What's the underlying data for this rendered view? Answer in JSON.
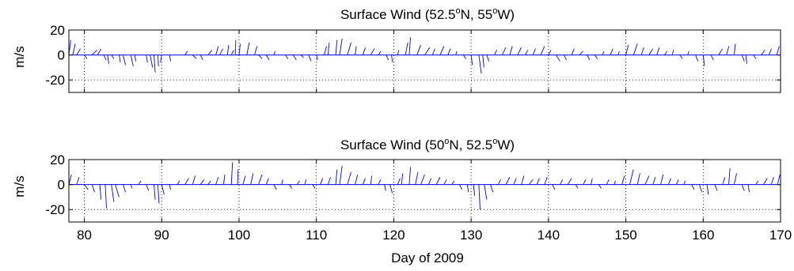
{
  "chart_data": [
    {
      "type": "vector-stickplot",
      "title": "Surface Wind (52.5°N, 55°W)",
      "title_prefix": "Surface Wind (52.5",
      "title_mid": "N, 55",
      "title_suffix": "W)",
      "title_sup1": "o",
      "title_sup2": "o",
      "ylabel": "m/s",
      "xlim": [
        78,
        170
      ],
      "ylim": [
        -30,
        20
      ],
      "yticks": [
        20,
        0,
        -20
      ],
      "ytick_labels": [
        "20",
        "0",
        "-20"
      ],
      "xticks": [
        80,
        90,
        100,
        110,
        120,
        130,
        140,
        150,
        160,
        170
      ],
      "xtick_labels": [],
      "grid": true,
      "color": "#0000ff",
      "sticks": [
        {
          "day": 78.0,
          "u": 1.5,
          "v": 12.0
        },
        {
          "day": 78.5,
          "u": 2.0,
          "v": 9.0
        },
        {
          "day": 79.0,
          "u": 3.0,
          "v": 5.0
        },
        {
          "day": 80.0,
          "u": 2.0,
          "v": -3.0
        },
        {
          "day": 81.0,
          "u": 4.0,
          "v": 4.0
        },
        {
          "day": 81.7,
          "u": 3.0,
          "v": 5.0
        },
        {
          "day": 82.5,
          "u": 2.0,
          "v": -4.0
        },
        {
          "day": 83.0,
          "u": 1.0,
          "v": -7.0
        },
        {
          "day": 83.5,
          "u": 2.0,
          "v": -3.0
        },
        {
          "day": 84.5,
          "u": 1.0,
          "v": -6.0
        },
        {
          "day": 85.0,
          "u": 2.0,
          "v": -8.0
        },
        {
          "day": 86.0,
          "u": 2.0,
          "v": -9.0
        },
        {
          "day": 86.5,
          "u": 1.0,
          "v": -5.0
        },
        {
          "day": 88.0,
          "u": 1.0,
          "v": -6.0
        },
        {
          "day": 88.5,
          "u": 2.0,
          "v": -10.0
        },
        {
          "day": 89.0,
          "u": 1.0,
          "v": -14.0
        },
        {
          "day": 89.5,
          "u": 0.5,
          "v": -9.0
        },
        {
          "day": 90.0,
          "u": -1.0,
          "v": -6.0
        },
        {
          "day": 91.0,
          "u": 1.0,
          "v": -5.0
        },
        {
          "day": 93.0,
          "u": 2.0,
          "v": 3.0
        },
        {
          "day": 94.0,
          "u": 3.0,
          "v": -3.0
        },
        {
          "day": 95.0,
          "u": 2.0,
          "v": -4.0
        },
        {
          "day": 96.0,
          "u": 3.0,
          "v": 4.0
        },
        {
          "day": 97.0,
          "u": 2.0,
          "v": 7.0
        },
        {
          "day": 97.5,
          "u": 2.5,
          "v": 5.0
        },
        {
          "day": 98.5,
          "u": 1.0,
          "v": 8.0
        },
        {
          "day": 99.0,
          "u": 2.0,
          "v": 4.0
        },
        {
          "day": 99.5,
          "u": 0.5,
          "v": 12.0
        },
        {
          "day": 100.0,
          "u": 1.0,
          "v": 9.0
        },
        {
          "day": 101.0,
          "u": 2.0,
          "v": 10.0
        },
        {
          "day": 102.0,
          "u": 2.0,
          "v": 7.0
        },
        {
          "day": 102.5,
          "u": 3.0,
          "v": -3.0
        },
        {
          "day": 103.5,
          "u": 2.5,
          "v": -4.0
        },
        {
          "day": 104.5,
          "u": 1.0,
          "v": 3.0
        },
        {
          "day": 106.0,
          "u": 2.0,
          "v": -3.0
        },
        {
          "day": 107.0,
          "u": 2.5,
          "v": -4.0
        },
        {
          "day": 108.0,
          "u": 2.0,
          "v": -2.0
        },
        {
          "day": 109.0,
          "u": 2.0,
          "v": -5.0
        },
        {
          "day": 110.0,
          "u": 1.0,
          "v": -4.0
        },
        {
          "day": 111.0,
          "u": 2.0,
          "v": 7.0
        },
        {
          "day": 111.5,
          "u": 1.0,
          "v": 10.0
        },
        {
          "day": 112.5,
          "u": 1.0,
          "v": 12.0
        },
        {
          "day": 113.0,
          "u": 2.0,
          "v": 13.0
        },
        {
          "day": 114.0,
          "u": 3.0,
          "v": 10.0
        },
        {
          "day": 115.0,
          "u": 1.0,
          "v": 7.0
        },
        {
          "day": 116.0,
          "u": 2.0,
          "v": 6.0
        },
        {
          "day": 117.0,
          "u": 3.0,
          "v": 5.0
        },
        {
          "day": 118.0,
          "u": 2.0,
          "v": 3.0
        },
        {
          "day": 119.0,
          "u": 2.0,
          "v": -4.0
        },
        {
          "day": 119.7,
          "u": 1.0,
          "v": -6.0
        },
        {
          "day": 120.5,
          "u": 1.0,
          "v": 4.0
        },
        {
          "day": 121.5,
          "u": 2.0,
          "v": 10.0
        },
        {
          "day": 122.0,
          "u": 1.0,
          "v": 14.0
        },
        {
          "day": 123.0,
          "u": 3.0,
          "v": 8.0
        },
        {
          "day": 124.0,
          "u": 4.0,
          "v": 6.0
        },
        {
          "day": 125.0,
          "u": 2.0,
          "v": 5.0
        },
        {
          "day": 126.0,
          "u": 3.0,
          "v": 7.0
        },
        {
          "day": 127.0,
          "u": 2.0,
          "v": 5.0
        },
        {
          "day": 128.0,
          "u": 1.0,
          "v": 3.0
        },
        {
          "day": 129.0,
          "u": 2.0,
          "v": -3.0
        },
        {
          "day": 130.0,
          "u": 1.0,
          "v": -8.0
        },
        {
          "day": 131.0,
          "u": 2.0,
          "v": -15.0
        },
        {
          "day": 131.5,
          "u": 1.0,
          "v": -10.0
        },
        {
          "day": 132.0,
          "u": 2.0,
          "v": -5.0
        },
        {
          "day": 133.0,
          "u": 2.0,
          "v": 4.0
        },
        {
          "day": 134.0,
          "u": 3.0,
          "v": 6.0
        },
        {
          "day": 135.0,
          "u": 2.0,
          "v": 7.0
        },
        {
          "day": 136.0,
          "u": 3.0,
          "v": 6.0
        },
        {
          "day": 137.0,
          "u": 2.0,
          "v": 4.0
        },
        {
          "day": 138.0,
          "u": 2.0,
          "v": 5.0
        },
        {
          "day": 139.0,
          "u": 3.0,
          "v": 7.0
        },
        {
          "day": 140.0,
          "u": 2.0,
          "v": 4.0
        },
        {
          "day": 141.0,
          "u": 3.0,
          "v": -5.0
        },
        {
          "day": 142.0,
          "u": 2.0,
          "v": -4.0
        },
        {
          "day": 143.0,
          "u": 2.0,
          "v": 5.0
        },
        {
          "day": 144.0,
          "u": 3.0,
          "v": 3.0
        },
        {
          "day": 145.0,
          "u": 2.0,
          "v": -4.0
        },
        {
          "day": 146.0,
          "u": 2.0,
          "v": -3.0
        },
        {
          "day": 147.0,
          "u": 1.0,
          "v": 3.0
        },
        {
          "day": 148.0,
          "u": 2.0,
          "v": 5.0
        },
        {
          "day": 149.0,
          "u": 1.0,
          "v": 3.0
        },
        {
          "day": 150.0,
          "u": 2.0,
          "v": 8.0
        },
        {
          "day": 151.0,
          "u": 3.0,
          "v": 9.0
        },
        {
          "day": 152.0,
          "u": 2.0,
          "v": 6.0
        },
        {
          "day": 153.0,
          "u": 3.0,
          "v": 5.0
        },
        {
          "day": 154.0,
          "u": 2.0,
          "v": 6.0
        },
        {
          "day": 155.0,
          "u": 2.0,
          "v": 3.0
        },
        {
          "day": 156.0,
          "u": 1.0,
          "v": 4.0
        },
        {
          "day": 157.0,
          "u": 2.0,
          "v": -3.0
        },
        {
          "day": 158.0,
          "u": 1.0,
          "v": 3.0
        },
        {
          "day": 159.0,
          "u": 2.0,
          "v": -5.0
        },
        {
          "day": 160.0,
          "u": 1.0,
          "v": -9.0
        },
        {
          "day": 161.0,
          "u": 2.0,
          "v": -4.0
        },
        {
          "day": 162.0,
          "u": 3.0,
          "v": 5.0
        },
        {
          "day": 163.0,
          "u": 2.0,
          "v": 7.0
        },
        {
          "day": 164.0,
          "u": 1.0,
          "v": 9.0
        },
        {
          "day": 165.0,
          "u": 2.0,
          "v": -5.0
        },
        {
          "day": 165.5,
          "u": 1.0,
          "v": -7.0
        },
        {
          "day": 166.5,
          "u": 2.0,
          "v": -3.0
        },
        {
          "day": 167.5,
          "u": 3.0,
          "v": 4.0
        },
        {
          "day": 168.5,
          "u": 2.0,
          "v": 5.0
        },
        {
          "day": 169.5,
          "u": 2.0,
          "v": 7.0
        }
      ]
    },
    {
      "type": "vector-stickplot",
      "title": "Surface Wind (50°N, 52.5°W)",
      "title_prefix": "Surface Wind (50",
      "title_mid": "N, 52.5",
      "title_suffix": "W)",
      "title_sup1": "o",
      "title_sup2": "o",
      "ylabel": "m/s",
      "xlabel": "Day of 2009",
      "xlim": [
        78,
        170
      ],
      "ylim": [
        -30,
        20
      ],
      "yticks": [
        20,
        0,
        -20
      ],
      "ytick_labels": [
        "20",
        "0",
        "-20"
      ],
      "xticks": [
        80,
        90,
        100,
        110,
        120,
        130,
        140,
        150,
        160,
        170
      ],
      "xtick_labels": [
        "80",
        "90",
        "100",
        "110",
        "120",
        "130",
        "140",
        "150",
        "160",
        "170"
      ],
      "grid": true,
      "color": "#0000ff",
      "sticks": [
        {
          "day": 78.0,
          "u": 2.0,
          "v": 8.0
        },
        {
          "day": 79.0,
          "u": 2.0,
          "v": 6.0
        },
        {
          "day": 80.0,
          "u": 3.0,
          "v": -4.0
        },
        {
          "day": 81.0,
          "u": 2.0,
          "v": -6.0
        },
        {
          "day": 82.0,
          "u": 1.0,
          "v": -12.0
        },
        {
          "day": 82.7,
          "u": 1.0,
          "v": -19.0
        },
        {
          "day": 83.5,
          "u": 2.0,
          "v": -14.0
        },
        {
          "day": 84.0,
          "u": 3.0,
          "v": -10.0
        },
        {
          "day": 85.0,
          "u": 2.0,
          "v": -6.0
        },
        {
          "day": 86.0,
          "u": 1.0,
          "v": -3.0
        },
        {
          "day": 87.0,
          "u": 2.0,
          "v": 3.0
        },
        {
          "day": 88.0,
          "u": 2.0,
          "v": -5.0
        },
        {
          "day": 89.0,
          "u": 1.0,
          "v": -12.0
        },
        {
          "day": 89.5,
          "u": 1.0,
          "v": -15.0
        },
        {
          "day": 90.0,
          "u": 2.0,
          "v": -8.0
        },
        {
          "day": 91.0,
          "u": 1.0,
          "v": -4.0
        },
        {
          "day": 92.0,
          "u": 2.0,
          "v": 3.0
        },
        {
          "day": 93.0,
          "u": 3.0,
          "v": 5.0
        },
        {
          "day": 94.0,
          "u": 2.0,
          "v": 7.0
        },
        {
          "day": 95.0,
          "u": 3.0,
          "v": 4.0
        },
        {
          "day": 96.0,
          "u": 2.0,
          "v": 3.0
        },
        {
          "day": 97.0,
          "u": 2.0,
          "v": 6.0
        },
        {
          "day": 98.0,
          "u": 1.0,
          "v": 8.0
        },
        {
          "day": 99.0,
          "u": 1.0,
          "v": 18.0
        },
        {
          "day": 99.8,
          "u": 0.5,
          "v": 12.0
        },
        {
          "day": 100.5,
          "u": 2.0,
          "v": 7.0
        },
        {
          "day": 101.5,
          "u": 2.0,
          "v": 9.0
        },
        {
          "day": 102.5,
          "u": 3.0,
          "v": 8.0
        },
        {
          "day": 103.5,
          "u": 2.0,
          "v": 5.0
        },
        {
          "day": 104.5,
          "u": 2.0,
          "v": -4.0
        },
        {
          "day": 105.5,
          "u": 1.0,
          "v": 4.0
        },
        {
          "day": 106.5,
          "u": 2.0,
          "v": -3.0
        },
        {
          "day": 107.5,
          "u": 2.0,
          "v": 3.0
        },
        {
          "day": 108.5,
          "u": 1.0,
          "v": 4.0
        },
        {
          "day": 109.5,
          "u": 2.0,
          "v": -3.0
        },
        {
          "day": 110.5,
          "u": 2.0,
          "v": 5.0
        },
        {
          "day": 111.5,
          "u": 2.0,
          "v": 6.0
        },
        {
          "day": 112.5,
          "u": 1.0,
          "v": 12.0
        },
        {
          "day": 113.0,
          "u": 2.0,
          "v": 15.0
        },
        {
          "day": 114.0,
          "u": 3.0,
          "v": 10.0
        },
        {
          "day": 115.0,
          "u": 2.0,
          "v": 8.0
        },
        {
          "day": 116.0,
          "u": 2.0,
          "v": 5.0
        },
        {
          "day": 117.0,
          "u": 1.0,
          "v": 7.0
        },
        {
          "day": 118.0,
          "u": 2.0,
          "v": 4.0
        },
        {
          "day": 118.8,
          "u": 1.0,
          "v": -5.0
        },
        {
          "day": 119.5,
          "u": 2.0,
          "v": -7.0
        },
        {
          "day": 120.5,
          "u": 2.0,
          "v": 5.0
        },
        {
          "day": 121.0,
          "u": 1.0,
          "v": 9.0
        },
        {
          "day": 122.0,
          "u": 1.0,
          "v": 14.0
        },
        {
          "day": 122.8,
          "u": 2.0,
          "v": 10.0
        },
        {
          "day": 123.5,
          "u": 3.0,
          "v": 8.0
        },
        {
          "day": 124.5,
          "u": 2.0,
          "v": 5.0
        },
        {
          "day": 125.5,
          "u": 3.0,
          "v": 6.0
        },
        {
          "day": 126.5,
          "u": 2.0,
          "v": 4.0
        },
        {
          "day": 127.5,
          "u": 2.0,
          "v": 3.0
        },
        {
          "day": 128.5,
          "u": 2.0,
          "v": -4.0
        },
        {
          "day": 129.5,
          "u": 1.0,
          "v": -6.0
        },
        {
          "day": 130.3,
          "u": 1.0,
          "v": -9.0
        },
        {
          "day": 131.0,
          "u": 1.0,
          "v": -20.0
        },
        {
          "day": 131.7,
          "u": 2.0,
          "v": -12.0
        },
        {
          "day": 132.5,
          "u": 2.0,
          "v": -6.0
        },
        {
          "day": 133.5,
          "u": 2.0,
          "v": 4.0
        },
        {
          "day": 134.5,
          "u": 3.0,
          "v": 6.0
        },
        {
          "day": 135.5,
          "u": 2.0,
          "v": 5.0
        },
        {
          "day": 136.5,
          "u": 2.0,
          "v": 7.0
        },
        {
          "day": 137.5,
          "u": 3.0,
          "v": 4.0
        },
        {
          "day": 138.5,
          "u": 2.0,
          "v": 5.0
        },
        {
          "day": 139.5,
          "u": 2.0,
          "v": 6.0
        },
        {
          "day": 140.5,
          "u": 2.0,
          "v": -4.0
        },
        {
          "day": 141.5,
          "u": 2.0,
          "v": 4.0
        },
        {
          "day": 142.5,
          "u": 3.0,
          "v": 5.0
        },
        {
          "day": 143.5,
          "u": 2.0,
          "v": -3.0
        },
        {
          "day": 144.5,
          "u": 2.0,
          "v": 4.0
        },
        {
          "day": 145.5,
          "u": 1.0,
          "v": 5.0
        },
        {
          "day": 146.5,
          "u": 2.0,
          "v": -3.0
        },
        {
          "day": 147.5,
          "u": 2.0,
          "v": 4.0
        },
        {
          "day": 148.5,
          "u": 1.0,
          "v": 3.0
        },
        {
          "day": 149.5,
          "u": 2.0,
          "v": 7.0
        },
        {
          "day": 150.5,
          "u": 3.0,
          "v": 12.0
        },
        {
          "day": 151.5,
          "u": 2.0,
          "v": 9.0
        },
        {
          "day": 152.5,
          "u": 3.0,
          "v": 7.0
        },
        {
          "day": 153.5,
          "u": 2.0,
          "v": 6.0
        },
        {
          "day": 154.5,
          "u": 2.0,
          "v": 8.0
        },
        {
          "day": 155.5,
          "u": 2.0,
          "v": 5.0
        },
        {
          "day": 156.5,
          "u": 2.0,
          "v": 4.0
        },
        {
          "day": 157.5,
          "u": 1.0,
          "v": 3.0
        },
        {
          "day": 158.5,
          "u": 2.0,
          "v": -4.0
        },
        {
          "day": 159.5,
          "u": 2.0,
          "v": -6.0
        },
        {
          "day": 160.5,
          "u": 1.0,
          "v": -8.0
        },
        {
          "day": 161.5,
          "u": 2.0,
          "v": -5.0
        },
        {
          "day": 162.5,
          "u": 2.0,
          "v": 6.0
        },
        {
          "day": 163.3,
          "u": 1.0,
          "v": 13.0
        },
        {
          "day": 164.0,
          "u": 2.0,
          "v": 9.0
        },
        {
          "day": 165.0,
          "u": 2.0,
          "v": -5.0
        },
        {
          "day": 165.8,
          "u": 1.0,
          "v": -6.0
        },
        {
          "day": 166.8,
          "u": 2.0,
          "v": 3.0
        },
        {
          "day": 167.8,
          "u": 3.0,
          "v": 5.0
        },
        {
          "day": 168.8,
          "u": 2.0,
          "v": 6.0
        },
        {
          "day": 169.6,
          "u": 2.0,
          "v": 8.0
        }
      ]
    }
  ]
}
